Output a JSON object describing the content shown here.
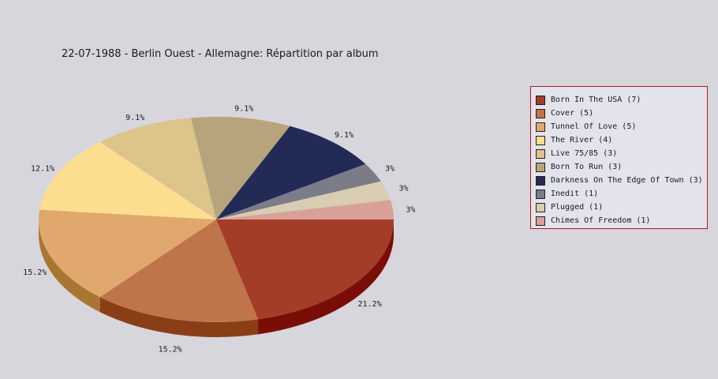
{
  "chart_data": {
    "type": "pie",
    "title": "22-07-1988 - Berlin Ouest - Allemagne:  Répartition par album",
    "slices": [
      {
        "label": "Born In The USA",
        "count": 7,
        "percent_label": "21.2%",
        "color": "#a33d28",
        "side_color": "#7a0e06"
      },
      {
        "label": "Cover",
        "count": 5,
        "percent_label": "15.2%",
        "color": "#c0744a",
        "side_color": "#8a3e16"
      },
      {
        "label": "Tunnel Of Love",
        "count": 5,
        "percent_label": "15.2%",
        "color": "#e0a86c",
        "side_color": "#a97632"
      },
      {
        "label": "The River",
        "count": 4,
        "percent_label": "12.1%",
        "color": "#fddd90",
        "side_color": "#c4a44e"
      },
      {
        "label": "Live 75/85",
        "count": 3,
        "percent_label": "9.1%",
        "color": "#dcc48a",
        "side_color": "#a48c4e"
      },
      {
        "label": "Born To Run",
        "count": 3,
        "percent_label": "9.1%",
        "color": "#b8a47c",
        "side_color": "#7e6c48"
      },
      {
        "label": "Darkness On The Edge Of Town",
        "count": 3,
        "percent_label": "9.1%",
        "color": "#222a56",
        "side_color": "#0c1034"
      },
      {
        "label": "Inedit",
        "count": 1,
        "percent_label": "3%",
        "color": "#7c7c88",
        "side_color": "#4e4e58"
      },
      {
        "label": "Plugged",
        "count": 1,
        "percent_label": "3%",
        "color": "#d8ccb2",
        "side_color": "#a2957a"
      },
      {
        "label": "Chimes Of Freedom",
        "count": 1,
        "percent_label": "3%",
        "color": "#d8a096",
        "side_color": "#a06a60"
      }
    ],
    "legend_placement": "right"
  }
}
